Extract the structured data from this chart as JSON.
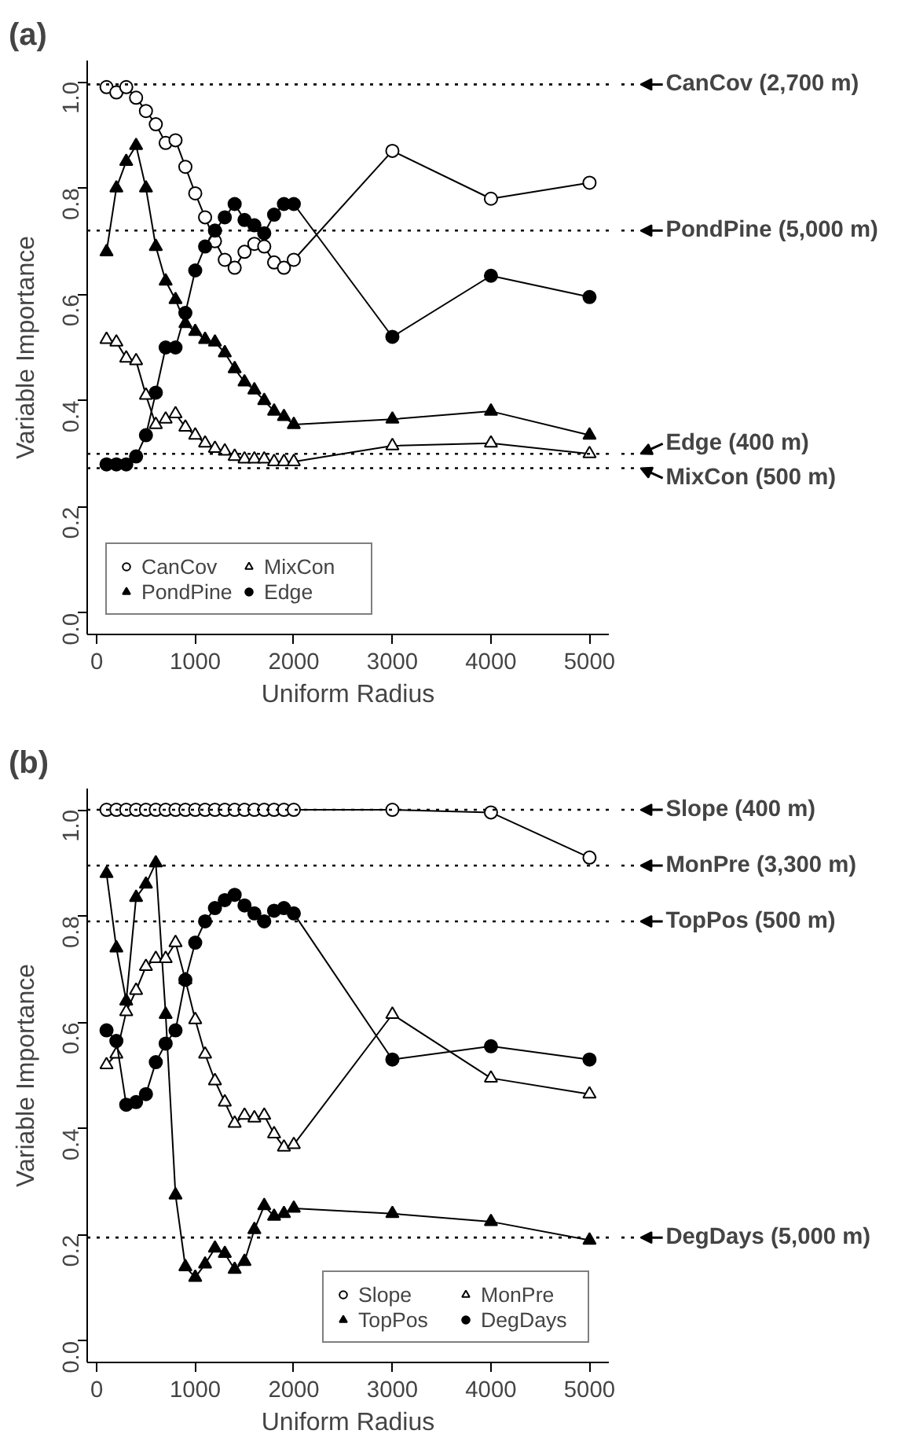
{
  "chart_data": [
    {
      "type": "line",
      "title": "(a)",
      "xlabel": "Uniform Radius",
      "ylabel": "Variable Importance",
      "x": [
        100,
        200,
        300,
        400,
        500,
        600,
        700,
        800,
        900,
        1000,
        1100,
        1200,
        1300,
        1400,
        1500,
        1600,
        1700,
        1800,
        1900,
        2000,
        3000,
        4000,
        5000
      ],
      "xlim": [
        -96,
        5196
      ],
      "ylim": [
        -0.04,
        1.04
      ],
      "xticks": [
        0,
        1000,
        2000,
        3000,
        4000,
        5000
      ],
      "yticks": [
        {
          "value": 0,
          "label": "0.0"
        },
        {
          "value": 0.2,
          "label": "0.2"
        },
        {
          "value": 0.4,
          "label": "0.4"
        },
        {
          "value": 0.6,
          "label": "0.6"
        },
        {
          "value": 0.8,
          "label": "0.8"
        },
        {
          "value": 1,
          "label": "1.0"
        }
      ],
      "grid": false,
      "legend": "bottom left",
      "line_style": "solid",
      "series": [
        {
          "name": "CanCov",
          "color": "#000000",
          "marker": "circle",
          "values": [
            0.99,
            0.98,
            0.99,
            0.97,
            0.945,
            0.92,
            0.885,
            0.89,
            0.84,
            0.79,
            0.745,
            0.7,
            0.665,
            0.65,
            0.68,
            0.695,
            0.69,
            0.66,
            0.65,
            0.665,
            0.87,
            0.78,
            0.81
          ]
        },
        {
          "name": "PondPine",
          "color": "#000000",
          "marker": "triangle",
          "values": [
            0.68,
            0.8,
            0.85,
            0.88,
            0.8,
            0.69,
            0.625,
            0.59,
            0.545,
            0.53,
            0.515,
            0.51,
            0.49,
            0.46,
            0.435,
            0.42,
            0.4,
            0.38,
            0.37,
            0.355,
            0.365,
            0.38,
            0.335
          ]
        },
        {
          "name": "MixCon",
          "color": "#000000",
          "marker": "triangle",
          "values": [
            0.515,
            0.51,
            0.48,
            0.475,
            0.41,
            0.355,
            0.365,
            0.375,
            0.35,
            0.335,
            0.32,
            0.31,
            0.305,
            0.295,
            0.29,
            0.29,
            0.29,
            0.285,
            0.285,
            0.285,
            0.315,
            0.32,
            0.3
          ]
        },
        {
          "name": "Edge",
          "color": "#000000",
          "marker": "circle",
          "values": [
            0.28,
            0.28,
            0.28,
            0.295,
            0.335,
            0.415,
            0.5,
            0.5,
            0.565,
            0.645,
            0.69,
            0.72,
            0.745,
            0.77,
            0.74,
            0.73,
            0.715,
            0.75,
            0.77,
            0.77,
            0.52,
            0.635,
            0.595
          ]
        }
      ],
      "ref_lines": [
        {
          "axis": "y",
          "value": 0.995,
          "label": "CanCov (2,700 m)",
          "line_style": "dotted"
        },
        {
          "axis": "y",
          "value": 0.72,
          "label": "PondPine (5,000  m)",
          "line_style": "dotted"
        },
        {
          "axis": "y",
          "value": 0.3,
          "label": "Edge (400 m)",
          "line_style": "dotted"
        },
        {
          "axis": "y",
          "value": 0.273,
          "label": "MixCon (500 m)",
          "line_style": "dotted"
        }
      ]
    },
    {
      "type": "line",
      "title": "(b)",
      "xlabel": "Uniform Radius",
      "ylabel": "Variable Importance",
      "x": [
        100,
        200,
        300,
        400,
        500,
        600,
        700,
        800,
        900,
        1000,
        1100,
        1200,
        1300,
        1400,
        1500,
        1600,
        1700,
        1800,
        1900,
        2000,
        3000,
        4000,
        5000
      ],
      "xlim": [
        -96,
        5196
      ],
      "ylim": [
        -0.04,
        1.04
      ],
      "xticks": [
        0,
        1000,
        2000,
        3000,
        4000,
        5000
      ],
      "yticks": [
        {
          "value": 0,
          "label": "0.0"
        },
        {
          "value": 0.2,
          "label": "0.2"
        },
        {
          "value": 0.4,
          "label": "0.4"
        },
        {
          "value": 0.6,
          "label": "0.6"
        },
        {
          "value": 0.8,
          "label": "0.8"
        },
        {
          "value": 1,
          "label": "1.0"
        }
      ],
      "grid": false,
      "legend": "bottom right",
      "line_style": "solid",
      "series": [
        {
          "name": "Slope",
          "color": "#000000",
          "marker": "circle",
          "values": [
            1,
            1,
            1,
            1,
            1,
            1,
            1,
            1,
            1,
            1,
            1,
            1,
            1,
            1,
            1,
            1,
            1,
            1,
            1,
            1,
            1,
            0.995,
            0.91
          ]
        },
        {
          "name": "TopPos",
          "color": "#000000",
          "marker": "triangle",
          "values": [
            0.88,
            0.74,
            0.64,
            0.835,
            0.86,
            0.9,
            0.615,
            0.275,
            0.14,
            0.12,
            0.145,
            0.175,
            0.165,
            0.135,
            0.15,
            0.21,
            0.255,
            0.235,
            0.24,
            0.25,
            0.24,
            0.225,
            0.19
          ]
        },
        {
          "name": "MonPre",
          "color": "#000000",
          "marker": "triangle",
          "values": [
            0.52,
            0.54,
            0.62,
            0.66,
            0.705,
            0.72,
            0.72,
            0.75,
            0.68,
            0.605,
            0.54,
            0.49,
            0.45,
            0.41,
            0.425,
            0.42,
            0.425,
            0.39,
            0.365,
            0.37,
            0.615,
            0.495,
            0.465
          ]
        },
        {
          "name": "DegDays",
          "color": "#000000",
          "marker": "circle",
          "values": [
            0.585,
            0.565,
            0.445,
            0.45,
            0.465,
            0.525,
            0.56,
            0.585,
            0.68,
            0.75,
            0.79,
            0.815,
            0.83,
            0.84,
            0.82,
            0.805,
            0.79,
            0.81,
            0.815,
            0.805,
            0.53,
            0.555,
            0.53
          ]
        }
      ],
      "ref_lines": [
        {
          "axis": "y",
          "value": 1.0,
          "label": "Slope (400 m)",
          "line_style": "dotted"
        },
        {
          "axis": "y",
          "value": 0.895,
          "label": "MonPre (3,300 m)",
          "line_style": "dotted"
        },
        {
          "axis": "y",
          "value": 0.79,
          "label": "TopPos (500 m)",
          "line_style": "dotted"
        },
        {
          "axis": "y",
          "value": 0.195,
          "label": "DegDays (5,000 m)",
          "line_style": "dotted"
        }
      ]
    }
  ]
}
